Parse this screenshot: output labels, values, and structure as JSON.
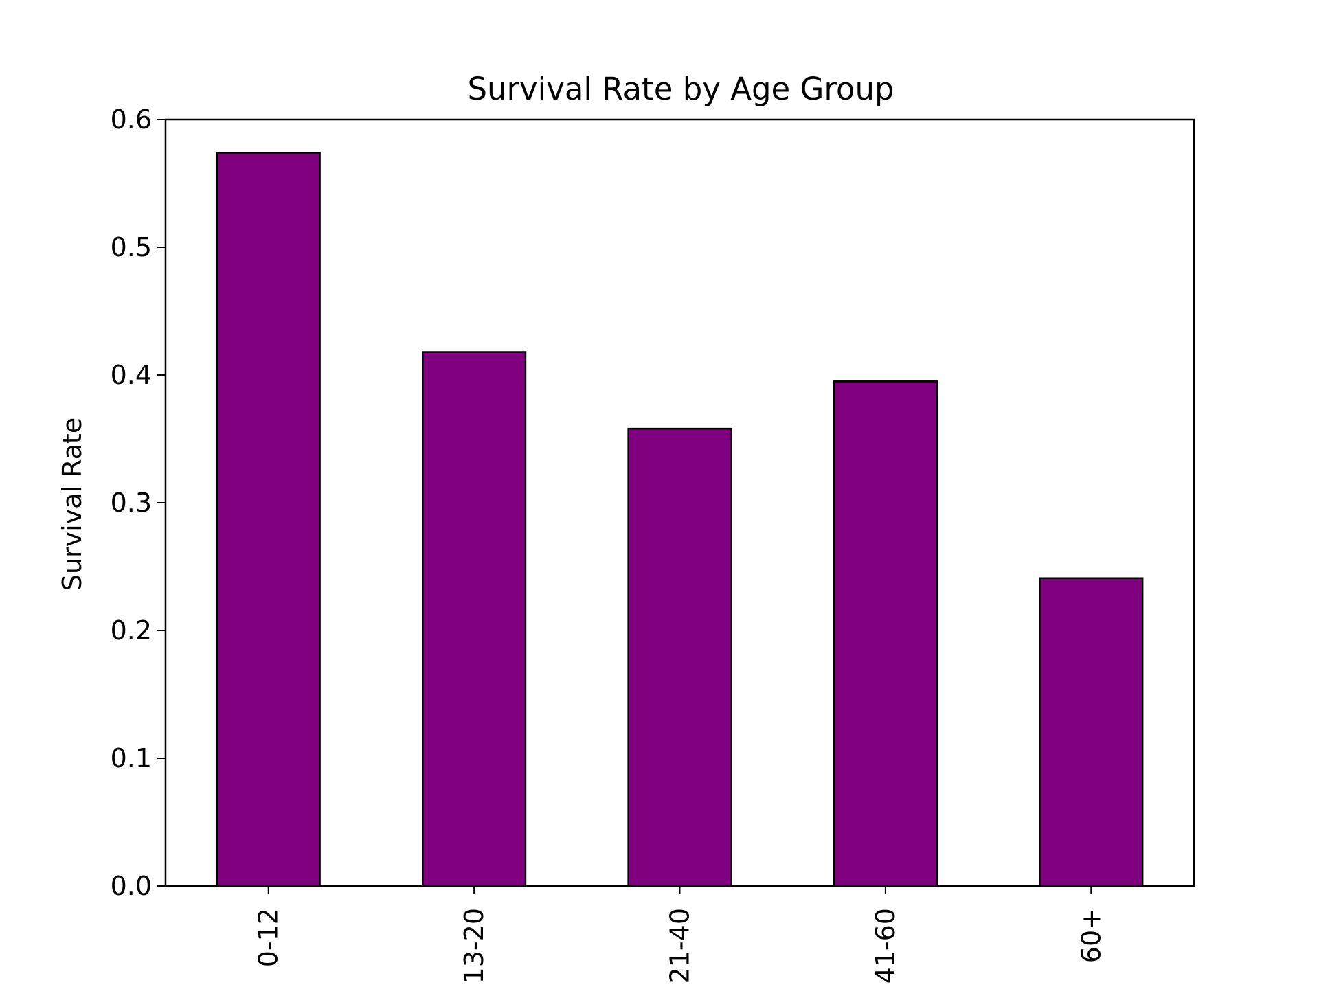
{
  "chart_data": {
    "type": "bar",
    "title": "Survival Rate by Age Group",
    "xlabel": "",
    "ylabel": "Survival Rate",
    "categories": [
      "0-12",
      "13-20",
      "21-40",
      "41-60",
      "60+"
    ],
    "values": [
      0.574,
      0.418,
      0.358,
      0.395,
      0.241
    ],
    "ylim": [
      0,
      0.6
    ],
    "yticks": [
      "0.0",
      "0.1",
      "0.2",
      "0.3",
      "0.4",
      "0.5",
      "0.6"
    ],
    "grid": false,
    "legend": "none",
    "bar_color": "#800080",
    "edge_color": "#000000"
  }
}
